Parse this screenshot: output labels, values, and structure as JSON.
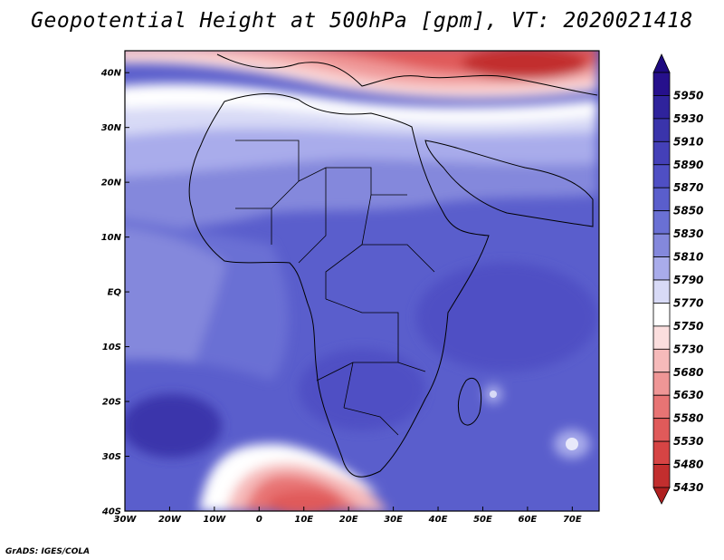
{
  "title": "Geopotential Height at 500hPa [gpm], VT: 2020021418",
  "credit": "GrADS: IGES/COLA",
  "map": {
    "lon_range": [
      -30,
      76
    ],
    "lat_range": [
      -40,
      44
    ],
    "lon_ticks": [
      {
        "value": -30,
        "label": "30W"
      },
      {
        "value": -20,
        "label": "20W"
      },
      {
        "value": -10,
        "label": "10W"
      },
      {
        "value": 0,
        "label": "0"
      },
      {
        "value": 10,
        "label": "10E"
      },
      {
        "value": 20,
        "label": "20E"
      },
      {
        "value": 30,
        "label": "30E"
      },
      {
        "value": 40,
        "label": "40E"
      },
      {
        "value": 50,
        "label": "50E"
      },
      {
        "value": 60,
        "label": "60E"
      },
      {
        "value": 70,
        "label": "70E"
      }
    ],
    "lat_ticks": [
      {
        "value": 40,
        "label": "40N"
      },
      {
        "value": 30,
        "label": "30N"
      },
      {
        "value": 20,
        "label": "20N"
      },
      {
        "value": 10,
        "label": "10N"
      },
      {
        "value": 0,
        "label": "EQ"
      },
      {
        "value": -10,
        "label": "10S"
      },
      {
        "value": -20,
        "label": "20S"
      },
      {
        "value": -30,
        "label": "30S"
      },
      {
        "value": -40,
        "label": "40S"
      }
    ]
  },
  "colorbar": {
    "levels": [
      {
        "label": "5950",
        "color": "#26108c"
      },
      {
        "label": "5930",
        "color": "#2f239c"
      },
      {
        "label": "5910",
        "color": "#3a34ab"
      },
      {
        "label": "5890",
        "color": "#4440b8"
      },
      {
        "label": "5870",
        "color": "#4f4fc4"
      },
      {
        "label": "5850",
        "color": "#5a5ecc"
      },
      {
        "label": "5830",
        "color": "#6a70d4"
      },
      {
        "label": "5810",
        "color": "#8488dc"
      },
      {
        "label": "5790",
        "color": "#a9aceb"
      },
      {
        "label": "5770",
        "color": "#d8daf6"
      },
      {
        "label": "5750",
        "color": "#ffffff"
      },
      {
        "label": "5730",
        "color": "#fbdede"
      },
      {
        "label": "5680",
        "color": "#f6baba"
      },
      {
        "label": "5630",
        "color": "#ef9696"
      },
      {
        "label": "5580",
        "color": "#e87474"
      },
      {
        "label": "5530",
        "color": "#e05a5a"
      },
      {
        "label": "5480",
        "color": "#d64444"
      },
      {
        "label": "5430",
        "color": "#c22e2e"
      }
    ],
    "top_color": "#1e0a80",
    "bottom_color": "#b02020"
  },
  "field_colors": {
    "deep_red": "#c22e2e",
    "red": "#e05a5a",
    "salmon": "#ef9696",
    "pink": "#f6baba",
    "light_pink": "#fbdede",
    "white": "#ffffff",
    "lavender": "#d8daf6",
    "light_blue": "#a9aceb",
    "blue1": "#8488dc",
    "blue2": "#6a70d4",
    "blue3": "#5a5ecc",
    "blue4": "#4f4fc4",
    "blue5": "#4440b8",
    "blue6": "#3a34ab"
  }
}
